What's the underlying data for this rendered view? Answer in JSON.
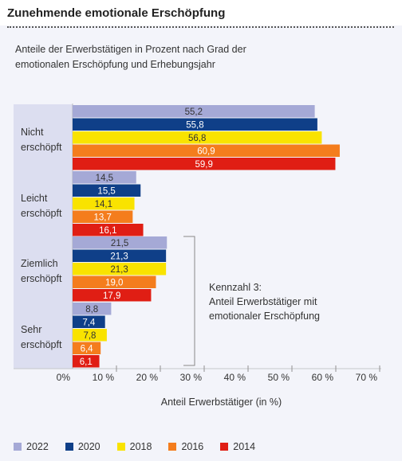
{
  "colors": {
    "2022": "#a5a9d6",
    "2020": "#0f3f88",
    "2018": "#f9e300",
    "2016": "#f47d1d",
    "2014": "#e01e14",
    "category_bg": "#dcdef0"
  },
  "chart_data": {
    "type": "bar",
    "orientation": "horizontal",
    "title": "Zunehmende emotionale Erschöpfung",
    "subtitle": "Anteile der Erwerbstätigen in Prozent nach Grad der emotionalen Erschöpfung und Erhebungsjahr",
    "xlabel": "Anteil Erwerbstätiger (in %)",
    "xlim": [
      0,
      70
    ],
    "xticks": [
      "0%",
      "10 %",
      "20 %",
      "30 %",
      "40 %",
      "50 %",
      "60 %",
      "70 %"
    ],
    "categories": [
      [
        "Nicht",
        "erschöpft"
      ],
      [
        "Leicht",
        "erschöpft"
      ],
      [
        "Ziemlich",
        "erschöpft"
      ],
      [
        "Sehr",
        "erschöpft"
      ]
    ],
    "series": [
      {
        "name": "2022",
        "values": [
          55.2,
          14.5,
          21.5,
          8.8
        ],
        "labels": [
          "55,2",
          "14,5",
          "21,5",
          "8,8"
        ]
      },
      {
        "name": "2020",
        "values": [
          55.8,
          15.5,
          21.3,
          7.4
        ],
        "labels": [
          "55,8",
          "15,5",
          "21,3",
          "7,4"
        ]
      },
      {
        "name": "2018",
        "values": [
          56.8,
          14.1,
          21.3,
          7.8
        ],
        "labels": [
          "56,8",
          "14,1",
          "21,3",
          "7,8"
        ]
      },
      {
        "name": "2016",
        "values": [
          60.9,
          13.7,
          19.0,
          6.4
        ],
        "labels": [
          "60,9",
          "13,7",
          "19,0",
          "6,4"
        ]
      },
      {
        "name": "2014",
        "values": [
          59.9,
          16.1,
          17.9,
          6.1
        ],
        "labels": [
          "59,9",
          "16,1",
          "17,9",
          "6,1"
        ]
      }
    ],
    "legend_position": "bottom",
    "annotation": [
      "Kennzahl 3:",
      "Anteil Erwerbstätiger mit",
      "emotionaler Erschöpfung"
    ]
  }
}
